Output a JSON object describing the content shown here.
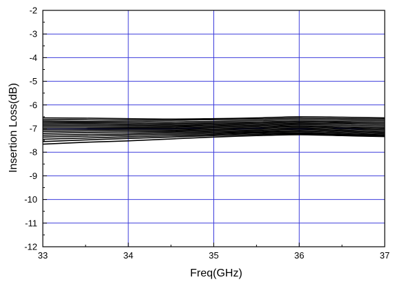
{
  "chart_data": {
    "type": "line",
    "xlabel": "Freq(GHz)",
    "ylabel": "Insertion Loss(dB)",
    "xlim": [
      33,
      37
    ],
    "ylim": [
      -12,
      -2
    ],
    "xticks": [
      "33",
      "34",
      "35",
      "36",
      "37"
    ],
    "yticks": [
      "-12",
      "-11",
      "-10",
      "-9",
      "-8",
      "-7",
      "-6",
      "-5",
      "-4",
      "-3",
      "-2"
    ],
    "grid": true,
    "grid_color": "#3b3bdc",
    "line_color": "#000000",
    "x": [
      33.0,
      33.5,
      34.0,
      34.5,
      35.0,
      35.5,
      36.0,
      36.5,
      37.0
    ],
    "series": [
      {
        "values": [
          -6.55,
          -6.56,
          -6.58,
          -6.6,
          -6.58,
          -6.55,
          -6.5,
          -6.52,
          -6.55
        ]
      },
      {
        "values": [
          -6.62,
          -6.63,
          -6.64,
          -6.65,
          -6.62,
          -6.6,
          -6.56,
          -6.58,
          -6.6
        ]
      },
      {
        "values": [
          -6.68,
          -6.7,
          -6.7,
          -6.72,
          -6.69,
          -6.66,
          -6.62,
          -6.64,
          -6.66
        ]
      },
      {
        "values": [
          -6.74,
          -6.75,
          -6.76,
          -6.78,
          -6.75,
          -6.72,
          -6.68,
          -6.7,
          -6.72
        ]
      },
      {
        "values": [
          -6.8,
          -6.8,
          -6.82,
          -6.83,
          -6.8,
          -6.77,
          -6.73,
          -6.75,
          -6.78
        ]
      },
      {
        "values": [
          -6.86,
          -6.86,
          -6.87,
          -6.88,
          -6.85,
          -6.82,
          -6.78,
          -6.8,
          -6.84
        ]
      },
      {
        "values": [
          -6.92,
          -6.92,
          -6.93,
          -6.93,
          -6.9,
          -6.87,
          -6.83,
          -6.86,
          -6.9
        ]
      },
      {
        "values": [
          -6.98,
          -6.98,
          -6.98,
          -6.98,
          -6.95,
          -6.92,
          -6.88,
          -6.92,
          -6.96
        ]
      },
      {
        "values": [
          -7.05,
          -7.04,
          -7.03,
          -7.03,
          -7.0,
          -6.97,
          -6.93,
          -6.97,
          -7.01
        ]
      },
      {
        "values": [
          -7.12,
          -7.1,
          -7.09,
          -7.08,
          -7.05,
          -7.02,
          -6.98,
          -7.02,
          -7.06
        ]
      },
      {
        "values": [
          -7.2,
          -7.17,
          -7.15,
          -7.13,
          -7.1,
          -7.07,
          -7.03,
          -7.07,
          -7.12
        ]
      },
      {
        "values": [
          -7.28,
          -7.25,
          -7.22,
          -7.18,
          -7.15,
          -7.12,
          -7.08,
          -7.12,
          -7.17
        ]
      },
      {
        "values": [
          -7.36,
          -7.32,
          -7.28,
          -7.24,
          -7.2,
          -7.16,
          -7.13,
          -7.17,
          -7.22
        ]
      },
      {
        "values": [
          -7.45,
          -7.4,
          -7.35,
          -7.3,
          -7.25,
          -7.2,
          -7.18,
          -7.22,
          -7.27
        ]
      },
      {
        "values": [
          -7.55,
          -7.48,
          -7.42,
          -7.36,
          -7.3,
          -7.25,
          -7.22,
          -7.26,
          -7.3
        ]
      },
      {
        "values": [
          -7.66,
          -7.58,
          -7.52,
          -7.44,
          -7.36,
          -7.3,
          -7.26,
          -7.3,
          -7.34
        ]
      }
    ]
  }
}
